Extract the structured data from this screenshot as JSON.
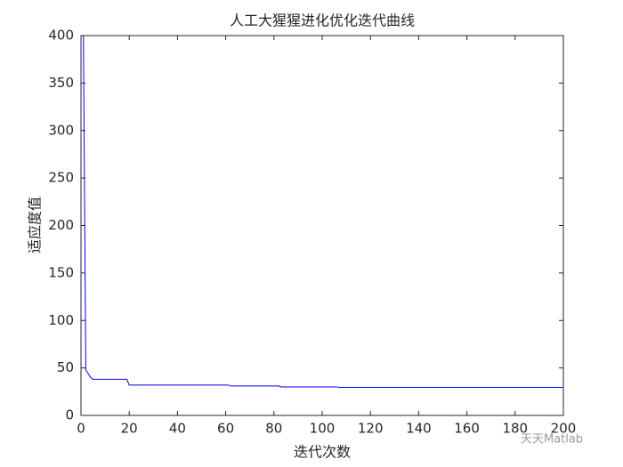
{
  "chart_data": {
    "type": "line",
    "title": "人工大猩猩进化优化迭代曲线",
    "x_label": "迭代次数",
    "y_label": "适应度值",
    "x": [
      1,
      2,
      3,
      4,
      5,
      19,
      20,
      61,
      62,
      82,
      83,
      106,
      107,
      200
    ],
    "series": [
      {
        "color": "#0000ff",
        "values": [
          400,
          48,
          44,
          40,
          38,
          38,
          32,
          32,
          31,
          31,
          30,
          30,
          29.5,
          29.5
        ]
      }
    ],
    "xlim": [
      0,
      200
    ],
    "xticks": [
      0,
      20,
      40,
      60,
      80,
      100,
      120,
      140,
      160,
      180,
      200
    ],
    "ylim": [
      0,
      400
    ],
    "yticks": [
      0,
      50,
      100,
      150,
      200,
      250,
      300,
      350,
      400
    ],
    "grid": false,
    "watermark": "天天Matlab"
  }
}
